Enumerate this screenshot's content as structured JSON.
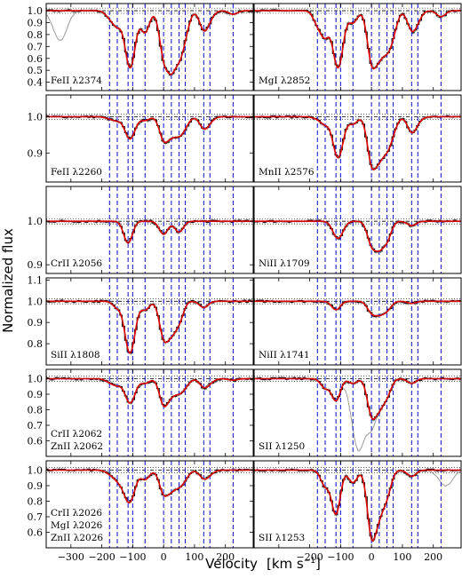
{
  "chart_data": {
    "type": "line",
    "ylabel": "Normalized flux",
    "xlabel": "Velocity",
    "xunit": "[km s",
    "xunit_sup": "−1",
    "xunit_close": "]",
    "xlim": [
      -380,
      290
    ],
    "xticks": [
      -300,
      -200,
      -100,
      0,
      100,
      200
    ],
    "component_velocities": [
      -175,
      -150,
      -115,
      -100,
      -60,
      0,
      25,
      50,
      70,
      130,
      150,
      225
    ],
    "colors": {
      "data": "#111111",
      "error": "#8a8a8a",
      "model": "#dd0000",
      "components": "#1f1fcc",
      "blended": "#9a9a9a"
    },
    "panels": [
      {
        "labels": [
          "FeII λ2374"
        ],
        "ylim": [
          0.33,
          1.06
        ],
        "yticks": [
          0.4,
          0.5,
          0.6,
          0.7,
          0.8,
          0.9,
          1.0
        ],
        "ytick_labels": [
          "0.4",
          "0.5",
          "0.6",
          "0.7",
          "0.8",
          "0.9",
          "1.0"
        ],
        "lines": [
          -175,
          -150,
          -115,
          -100,
          -60,
          0,
          25,
          50,
          70,
          130,
          150,
          225
        ],
        "depths": [
          0.05,
          0.12,
          0.3,
          0.25,
          0.18,
          0.35,
          0.4,
          0.3,
          0.15,
          0.15,
          0.05,
          0.03
        ],
        "blend": {
          "center": -335,
          "depth": 0.25
        }
      },
      {
        "labels": [
          "MgI λ2852"
        ],
        "ylim": [
          0.33,
          1.06
        ],
        "yticks": [],
        "ytick_labels": [],
        "lines": [
          -175,
          -150,
          -115,
          -100,
          -60,
          0,
          25,
          50,
          70,
          130,
          150,
          225
        ],
        "depths": [
          0.1,
          0.2,
          0.3,
          0.25,
          0.1,
          0.4,
          0.3,
          0.25,
          0.15,
          0.15,
          0.06,
          0.05
        ],
        "blend": null
      },
      {
        "labels": [
          "FeII λ2260"
        ],
        "ylim": [
          0.82,
          1.06
        ],
        "yticks": [
          0.9,
          1.0
        ],
        "ytick_labels": [
          "0.9",
          "1.0"
        ],
        "lines": [
          -175,
          -150,
          -115,
          -100,
          -60,
          0,
          25,
          50,
          70,
          130,
          150
        ],
        "depths": [
          0.005,
          0.01,
          0.04,
          0.03,
          0.01,
          0.06,
          0.04,
          0.04,
          0.02,
          0.03,
          0.01
        ],
        "blend": null
      },
      {
        "labels": [
          "MnII λ2576"
        ],
        "ylim": [
          0.82,
          1.06
        ],
        "yticks": [],
        "ytick_labels": [],
        "lines": [
          -175,
          -150,
          -115,
          -100,
          -60,
          0,
          25,
          50,
          70,
          130,
          150
        ],
        "depths": [
          0.005,
          0.02,
          0.07,
          0.06,
          0.02,
          0.12,
          0.09,
          0.07,
          0.03,
          0.04,
          0.01
        ],
        "blend": null
      },
      {
        "labels": [
          "CrII λ2056"
        ],
        "ylim": [
          0.88,
          1.08
        ],
        "yticks": [
          0.9,
          1.0
        ],
        "ytick_labels": [
          "0.9",
          "1.0"
        ],
        "lines": [
          -115,
          0,
          50
        ],
        "depths": [
          0.05,
          0.03,
          0.025
        ],
        "blend": null
      },
      {
        "labels": [
          "NiII λ1709"
        ],
        "ylim": [
          0.88,
          1.08
        ],
        "yticks": [],
        "ytick_labels": [],
        "lines": [
          -115,
          -100,
          0,
          25,
          50,
          130
        ],
        "depths": [
          0.025,
          0.02,
          0.05,
          0.05,
          0.04,
          0.01
        ],
        "blend": null
      },
      {
        "labels": [
          "SiII λ1808"
        ],
        "ylim": [
          0.7,
          1.11
        ],
        "yticks": [
          0.8,
          0.9,
          1.0,
          1.1
        ],
        "ytick_labels": [
          "0.8",
          "0.9",
          "1.0",
          "1.1"
        ],
        "lines": [
          -150,
          -115,
          -100,
          -60,
          0,
          25,
          50,
          130
        ],
        "depths": [
          0.03,
          0.16,
          0.12,
          0.04,
          0.16,
          0.12,
          0.09,
          0.03
        ],
        "blend": null
      },
      {
        "labels": [
          "NiII λ1741"
        ],
        "ylim": [
          0.7,
          1.11
        ],
        "yticks": [],
        "ytick_labels": [],
        "lines": [
          -115,
          0,
          25,
          50,
          130
        ],
        "depths": [
          0.04,
          0.05,
          0.05,
          0.04,
          0.01
        ],
        "blend": null
      },
      {
        "labels": [
          "CrII λ2062",
          "ZnII λ2062"
        ],
        "ylim": [
          0.5,
          1.06
        ],
        "yticks": [
          0.6,
          0.7,
          0.8,
          0.9,
          1.0
        ],
        "ytick_labels": [
          "0.6",
          "0.7",
          "0.8",
          "0.9",
          "1.0"
        ],
        "lines": [
          -175,
          -150,
          -115,
          -100,
          -60,
          0,
          25,
          50,
          70,
          130,
          150,
          225
        ],
        "depths": [
          0.02,
          0.04,
          0.1,
          0.08,
          0.03,
          0.16,
          0.08,
          0.07,
          0.04,
          0.05,
          0.02,
          0.01
        ],
        "blend": null
      },
      {
        "labels": [
          "SII λ1250"
        ],
        "ylim": [
          0.5,
          1.06
        ],
        "yticks": [],
        "ytick_labels": [],
        "lines": [
          -150,
          -115,
          -60,
          0,
          25,
          50,
          130
        ],
        "depths": [
          0.06,
          0.14,
          0.03,
          0.22,
          0.15,
          0.1,
          0.03
        ],
        "blend": {
          "center": -40,
          "depth": 0.45
        }
      },
      {
        "labels": [
          "CrII λ2026",
          "MgI λ2026",
          "ZnII λ2026"
        ],
        "ylim": [
          0.5,
          1.06
        ],
        "yticks": [
          0.6,
          0.7,
          0.8,
          0.9,
          1.0
        ],
        "ytick_labels": [
          "0.6",
          "0.7",
          "0.8",
          "0.9",
          "1.0"
        ],
        "lines": [
          -175,
          -150,
          -130,
          -115,
          -100,
          -60,
          0,
          25,
          50,
          70,
          130,
          150
        ],
        "depths": [
          0.02,
          0.05,
          0.05,
          0.12,
          0.1,
          0.06,
          0.14,
          0.1,
          0.08,
          0.04,
          0.05,
          0.02
        ],
        "blend": null
      },
      {
        "labels": [
          "SII λ1253"
        ],
        "ylim": [
          0.5,
          1.06
        ],
        "yticks": [],
        "ytick_labels": [],
        "lines": [
          -150,
          -115,
          -60,
          0,
          25,
          50,
          130
        ],
        "depths": [
          0.1,
          0.28,
          0.08,
          0.4,
          0.22,
          0.15,
          0.04
        ],
        "blend": {
          "center": 240,
          "depth": 0.1
        }
      }
    ]
  }
}
